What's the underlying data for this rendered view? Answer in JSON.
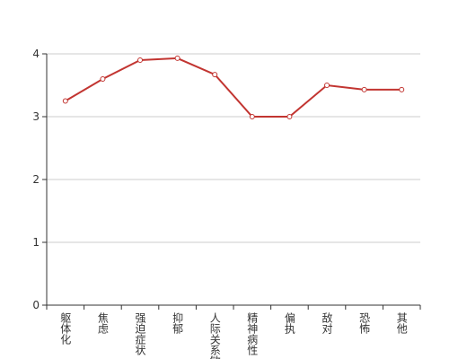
{
  "chart_data": {
    "type": "line",
    "categories": [
      "躯体化",
      "焦虑",
      "强迫症状",
      "抑郁",
      "人际关系敏感",
      "精神病性",
      "偏执",
      "敌对",
      "恐怖",
      "其他"
    ],
    "series": [
      {
        "color": "#c23531",
        "values": [
          3.25,
          3.6,
          3.9,
          3.93,
          3.67,
          3.0,
          3.0,
          3.5,
          3.43,
          3.43
        ]
      }
    ],
    "ylim": [
      0,
      4
    ],
    "yticks": [
      0,
      1,
      2,
      3,
      4
    ],
    "grid": true
  }
}
